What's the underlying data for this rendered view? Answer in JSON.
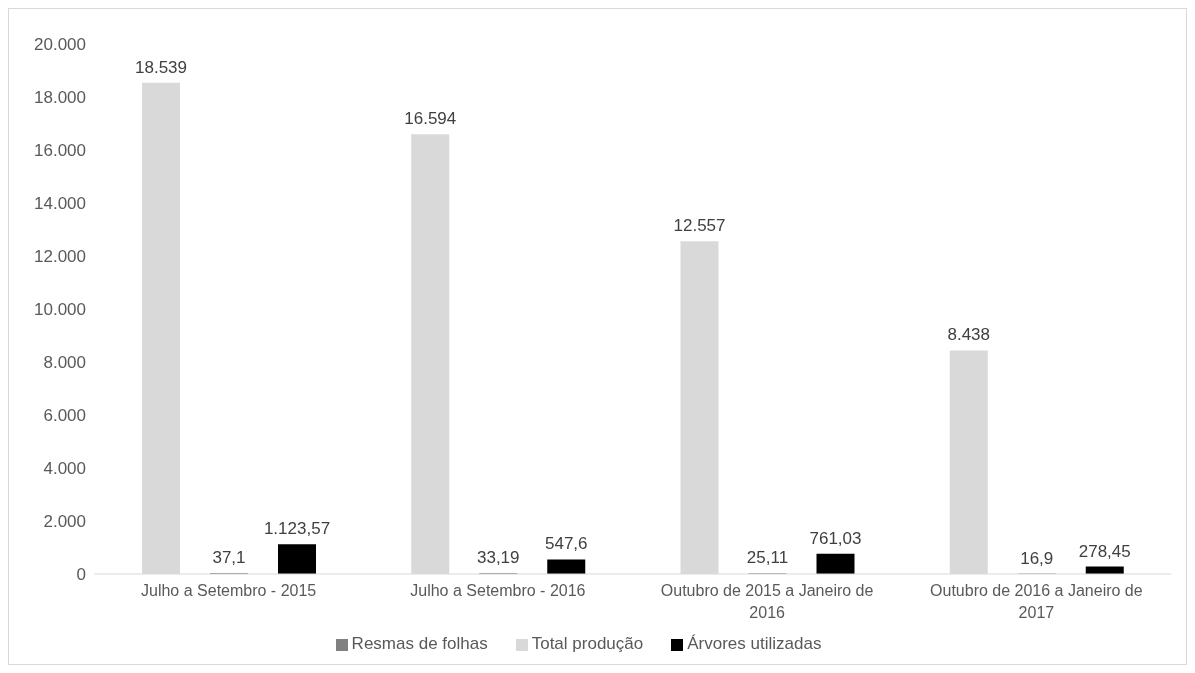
{
  "chart_data": {
    "type": "bar",
    "categories": [
      "Julho a Setembro - 2015",
      "Julho a Setembro - 2016",
      "Outubro de 2015 a Janeiro de 2016",
      "Outubro de 2016 a Janeiro de 2017"
    ],
    "series": [
      {
        "name": "Total produção",
        "color": "#d9d9d9",
        "values": [
          18539,
          16594,
          12557,
          8438
        ],
        "value_labels": [
          "18.539",
          "16.594",
          "12.557",
          "8.438"
        ]
      },
      {
        "name": "Resmas de folhas",
        "color": "#808080",
        "values": [
          37.1,
          33.19,
          25.11,
          16.9
        ],
        "value_labels": [
          "37,1",
          "33,19",
          "25,11",
          "16,9"
        ]
      },
      {
        "name": "Árvores utilizadas",
        "color": "#000000",
        "values": [
          1123.57,
          547.6,
          761.03,
          278.45
        ],
        "value_labels": [
          "1.123,57",
          "547,6",
          "761,03",
          "278,45"
        ]
      }
    ],
    "ylim": [
      0,
      20000
    ],
    "yticks": [
      {
        "value": 0,
        "label": "0"
      },
      {
        "value": 2000,
        "label": "2.000"
      },
      {
        "value": 4000,
        "label": "4.000"
      },
      {
        "value": 6000,
        "label": "6.000"
      },
      {
        "value": 8000,
        "label": "8.000"
      },
      {
        "value": 10000,
        "label": "10.000"
      },
      {
        "value": 12000,
        "label": "12.000"
      },
      {
        "value": 14000,
        "label": "14.000"
      },
      {
        "value": 16000,
        "label": "16.000"
      },
      {
        "value": 18000,
        "label": "18.000"
      },
      {
        "value": 20000,
        "label": "20.000"
      }
    ],
    "grid": false,
    "legend": "bottom"
  }
}
